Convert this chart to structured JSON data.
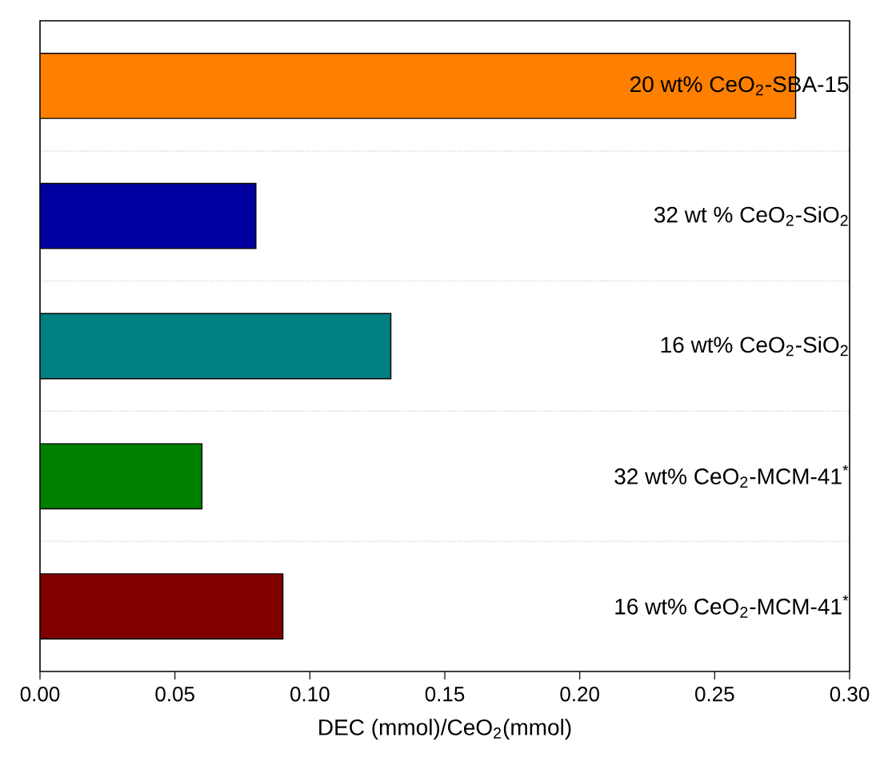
{
  "chart_data": {
    "type": "bar",
    "orientation": "horizontal",
    "xlabel": "DEC (mmol)/CeO$_{2}$(mmol)",
    "categories": [
      "20 wt% CeO$_{2}$-SBA-15",
      "32 wt % CeO$_{2}$-SiO$_{2}$",
      "16 wt% CeO$_{2}$-SiO$_{2}$",
      "32 wt% CeO$_{2}$-MCM-41$^{*}$",
      "16 wt% CeO$_{2}$-MCM-41$^{*}$"
    ],
    "values": [
      0.28,
      0.08,
      0.13,
      0.06,
      0.09
    ],
    "colors": [
      "#ff8000",
      "#0000a0",
      "#008080",
      "#008000",
      "#800000"
    ],
    "xlim": [
      0,
      0.3
    ],
    "xticks": [
      {
        "value": 0,
        "label": "0.00"
      },
      {
        "value": 0.05,
        "label": "0.05"
      },
      {
        "value": 0.1,
        "label": "0.10"
      },
      {
        "value": 0.15,
        "label": "0.15"
      },
      {
        "value": 0.2,
        "label": "0.20"
      },
      {
        "value": 0.25,
        "label": "0.25"
      },
      {
        "value": 0.3,
        "label": "0.30"
      }
    ],
    "grid": "y"
  }
}
